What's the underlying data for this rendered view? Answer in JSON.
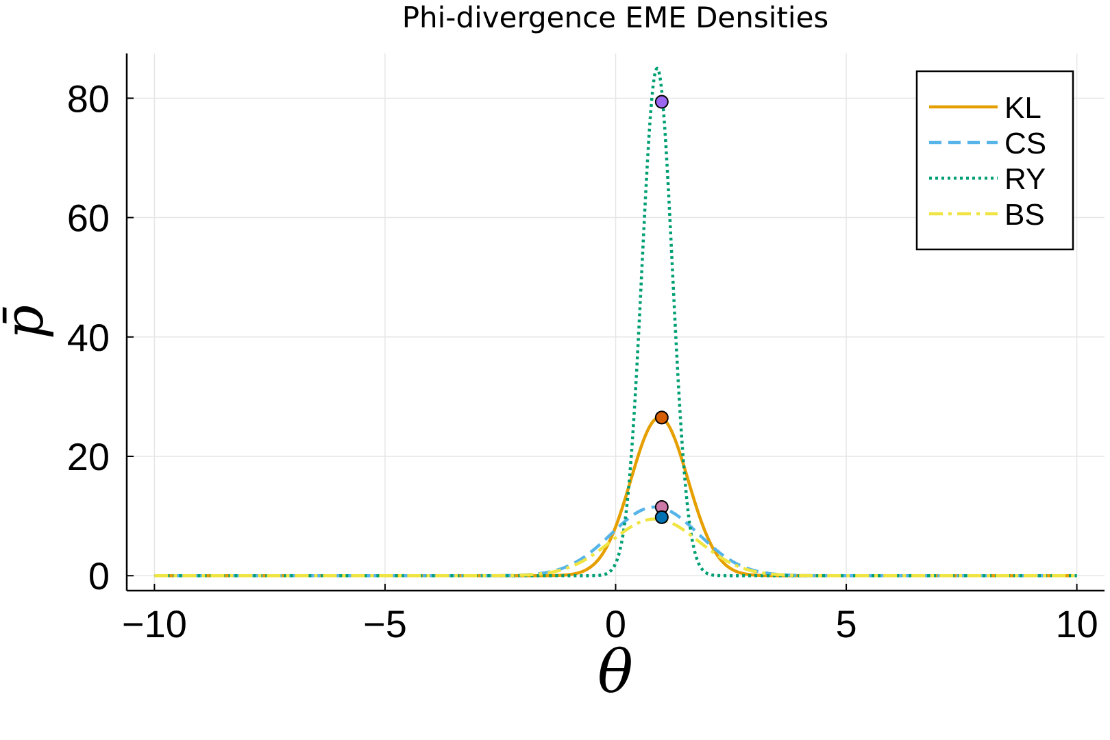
{
  "chart_data": {
    "type": "line",
    "title": "Phi-divergence EME Densities",
    "xlabel": "θ",
    "ylabel": "p̄",
    "xlim": [
      -10.6,
      10.6
    ],
    "ylim": [
      -2.5,
      87.5
    ],
    "x_ticks": [
      -10,
      -5,
      0,
      5,
      10
    ],
    "x_tick_labels": [
      "−10",
      "−5",
      "0",
      "5",
      "10"
    ],
    "y_ticks": [
      0,
      20,
      40,
      60,
      80
    ],
    "y_tick_labels": [
      "0",
      "20",
      "40",
      "60",
      "80"
    ],
    "grid": true,
    "legend_position": "top-right",
    "series": [
      {
        "name": "KL",
        "color": "#e69f00",
        "style": "solid",
        "shape": "gauss",
        "center": 0.95,
        "peak": 26.5,
        "sigma": 0.62
      },
      {
        "name": "CS",
        "color": "#56b4e9",
        "style": "dashed",
        "shape": "gauss",
        "center": 0.85,
        "peak": 11.5,
        "sigma": 0.95
      },
      {
        "name": "RY",
        "color": "#009e73",
        "style": "dotted",
        "shape": "gauss",
        "center": 0.9,
        "peak": 85.0,
        "sigma": 0.33
      },
      {
        "name": "BS",
        "color": "#f0e442",
        "style": "dashdot",
        "shape": "gauss",
        "center": 0.85,
        "peak": 9.5,
        "sigma": 0.95
      }
    ],
    "markers": [
      {
        "x": 1.0,
        "y": 79.4,
        "color": "#9b66f0"
      },
      {
        "x": 1.0,
        "y": 26.5,
        "color": "#d55e00"
      },
      {
        "x": 1.0,
        "y": 11.5,
        "color": "#cc79a7"
      },
      {
        "x": 1.0,
        "y": 9.8,
        "color": "#0072b2"
      }
    ]
  }
}
